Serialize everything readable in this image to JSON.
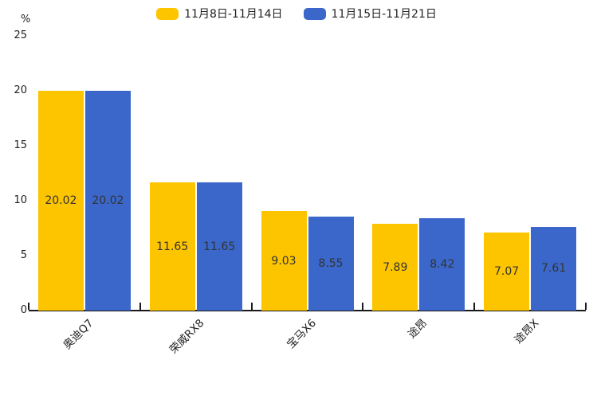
{
  "legend": {
    "items": [
      {
        "label": "11月8日-11月14日",
        "color": "#FDC500"
      },
      {
        "label": "11月15日-11月21日",
        "color": "#3A67C9"
      }
    ]
  },
  "chart_data": {
    "type": "bar",
    "title": "",
    "ylabel": "%",
    "xlabel": "",
    "ylim": [
      0,
      25
    ],
    "yticks": [
      0,
      5,
      10,
      15,
      20,
      25
    ],
    "grid": false,
    "legend_position": "top-center",
    "value_labels": "inside-center",
    "xtick_rotation": 45,
    "categories": [
      "奥迪Q7",
      "荣威RX8",
      "宝马X6",
      "途昂",
      "途昂X"
    ],
    "series": [
      {
        "name": "11月8日-11月14日",
        "color": "#FDC500",
        "values": [
          20.02,
          11.65,
          9.03,
          7.89,
          7.07
        ]
      },
      {
        "name": "11月15日-11月21日",
        "color": "#3A67C9",
        "values": [
          20.02,
          11.65,
          8.55,
          8.42,
          7.61
        ]
      }
    ]
  },
  "colors": {
    "axis": "#1a1a1a",
    "text": "#222222",
    "bar_label_text": "#333333"
  }
}
